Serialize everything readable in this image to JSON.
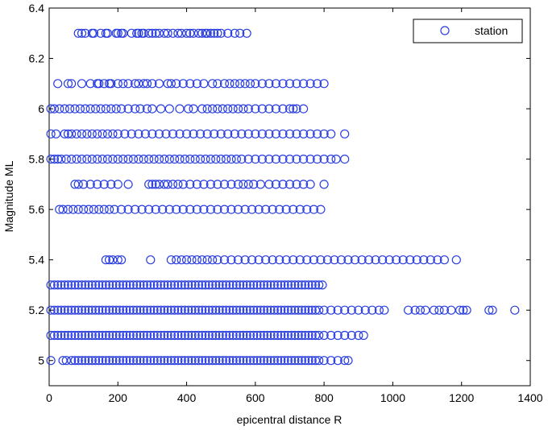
{
  "chart_data": {
    "type": "scatter",
    "title": "",
    "xlabel": "epicentral distance R",
    "ylabel": "Magnitude ML",
    "xlim": [
      0,
      1400
    ],
    "ylim": [
      4.9,
      6.4
    ],
    "xticks": [
      0,
      200,
      400,
      600,
      800,
      1000,
      1200,
      1400
    ],
    "yticks": [
      5,
      5.2,
      5.4,
      5.6,
      5.8,
      6,
      6.2,
      6.4
    ],
    "xtick_labels": [
      "0",
      "200",
      "400",
      "600",
      "800",
      "1000",
      "1200",
      "1400"
    ],
    "ytick_labels": [
      "5",
      "5.2",
      "5.4",
      "5.6",
      "5.8",
      "6",
      "6.2",
      "6.4"
    ],
    "grid": false,
    "legend_position": "top-right",
    "marker": "open-circle",
    "color": "#2b3fe0",
    "series": [
      {
        "name": "station",
        "rows": [
          {
            "y": 6.3,
            "x": [
              85,
              95,
              105,
              125,
              130,
              150,
              165,
              170,
              195,
              200,
              210,
              215,
              240,
              255,
              260,
              270,
              275,
              290,
              300,
              310,
              320,
              335,
              345,
              360,
              375,
              385,
              400,
              410,
              420,
              435,
              445,
              455,
              460,
              470,
              480,
              490,
              500,
              520,
              540,
              555,
              575
            ]
          },
          {
            "y": 6.1,
            "x": [
              25,
              55,
              65,
              95,
              120,
              140,
              145,
              160,
              175,
              180,
              200,
              215,
              230,
              250,
              260,
              275,
              285,
              300,
              320,
              345,
              355,
              370,
              390,
              410,
              430,
              450,
              475,
              490,
              510,
              525,
              540,
              555,
              570,
              585,
              600,
              620,
              640,
              660,
              680,
              700,
              720,
              740,
              760,
              780,
              800
            ]
          },
          {
            "y": 6.0,
            "x": [
              5,
              15,
              30,
              45,
              60,
              75,
              90,
              105,
              120,
              135,
              150,
              165,
              180,
              195,
              210,
              230,
              250,
              265,
              285,
              300,
              325,
              350,
              380,
              405,
              420,
              445,
              460,
              475,
              490,
              505,
              520,
              535,
              550,
              565,
              580,
              600,
              620,
              640,
              660,
              680,
              700,
              710,
              720,
              740
            ]
          },
          {
            "y": 5.9,
            "x": [
              5,
              20,
              45,
              55,
              65,
              80,
              95,
              110,
              125,
              140,
              155,
              170,
              185,
              200,
              220,
              240,
              260,
              280,
              300,
              320,
              340,
              360,
              380,
              400,
              420,
              440,
              460,
              480,
              500,
              520,
              540,
              560,
              580,
              600,
              620,
              640,
              660,
              680,
              700,
              720,
              740,
              760,
              780,
              800,
              820,
              860
            ]
          },
          {
            "y": 5.8,
            "x": [
              5,
              15,
              25,
              35,
              50,
              65,
              80,
              95,
              110,
              125,
              140,
              155,
              170,
              185,
              200,
              215,
              230,
              245,
              260,
              275,
              290,
              305,
              320,
              335,
              350,
              365,
              380,
              395,
              410,
              425,
              440,
              455,
              470,
              485,
              500,
              515,
              530,
              545,
              560,
              580,
              600,
              620,
              640,
              660,
              680,
              700,
              720,
              740,
              760,
              780,
              800,
              820,
              835,
              860
            ]
          },
          {
            "y": 5.7,
            "x": [
              75,
              85,
              100,
              120,
              140,
              160,
              180,
              200,
              230,
              290,
              300,
              310,
              320,
              335,
              345,
              360,
              375,
              390,
              410,
              430,
              450,
              470,
              490,
              510,
              530,
              550,
              565,
              580,
              595,
              615,
              640,
              660,
              680,
              700,
              720,
              740,
              760,
              800
            ]
          },
          {
            "y": 5.6,
            "x": [
              30,
              40,
              55,
              70,
              85,
              100,
              115,
              130,
              145,
              160,
              175,
              190,
              210,
              230,
              250,
              270,
              290,
              310,
              330,
              350,
              370,
              390,
              410,
              430,
              450,
              470,
              490,
              510,
              530,
              550,
              570,
              590,
              610,
              630,
              650,
              670,
              690,
              710,
              730,
              750,
              770,
              790
            ]
          },
          {
            "y": 5.4,
            "x": [
              165,
              175,
              185,
              200,
              210,
              295,
              355,
              370,
              385,
              400,
              415,
              430,
              445,
              460,
              475,
              490,
              510,
              530,
              550,
              570,
              590,
              610,
              630,
              650,
              670,
              690,
              710,
              730,
              750,
              770,
              790,
              810,
              830,
              850,
              870,
              890,
              910,
              930,
              950,
              970,
              990,
              1010,
              1030,
              1050,
              1070,
              1090,
              1110,
              1130,
              1150,
              1185
            ]
          },
          {
            "y": 5.3,
            "x": [
              5,
              15,
              25,
              35,
              45,
              55,
              65,
              75,
              85,
              95,
              105,
              115,
              125,
              135,
              145,
              155,
              165,
              175,
              185,
              195,
              205,
              215,
              225,
              235,
              245,
              255,
              265,
              275,
              285,
              295,
              305,
              315,
              325,
              335,
              345,
              355,
              365,
              375,
              385,
              395,
              405,
              415,
              425,
              435,
              445,
              455,
              465,
              475,
              485,
              495,
              505,
              515,
              525,
              535,
              545,
              555,
              565,
              575,
              585,
              595,
              605,
              615,
              625,
              635,
              645,
              655,
              665,
              675,
              685,
              695,
              705,
              715,
              725,
              735,
              745,
              755,
              765,
              775,
              785,
              795
            ]
          },
          {
            "y": 5.2,
            "x": [
              5,
              15,
              25,
              35,
              45,
              55,
              65,
              75,
              85,
              95,
              105,
              115,
              125,
              135,
              145,
              155,
              165,
              175,
              185,
              195,
              205,
              215,
              225,
              235,
              245,
              255,
              265,
              275,
              285,
              295,
              305,
              315,
              325,
              335,
              345,
              355,
              365,
              375,
              385,
              395,
              405,
              415,
              425,
              435,
              445,
              455,
              465,
              475,
              485,
              495,
              505,
              515,
              525,
              535,
              545,
              555,
              565,
              575,
              585,
              595,
              605,
              615,
              625,
              635,
              645,
              655,
              665,
              675,
              685,
              695,
              705,
              715,
              725,
              735,
              745,
              755,
              765,
              775,
              785,
              800,
              820,
              840,
              860,
              880,
              900,
              920,
              940,
              960,
              975,
              1045,
              1065,
              1080,
              1095,
              1120,
              1135,
              1150,
              1170,
              1195,
              1205,
              1215,
              1280,
              1290,
              1355
            ]
          },
          {
            "y": 5.1,
            "x": [
              5,
              15,
              25,
              35,
              45,
              55,
              65,
              75,
              85,
              95,
              105,
              115,
              125,
              135,
              145,
              155,
              165,
              175,
              185,
              195,
              205,
              215,
              225,
              235,
              245,
              255,
              265,
              275,
              285,
              295,
              305,
              315,
              325,
              335,
              345,
              355,
              365,
              375,
              385,
              395,
              405,
              415,
              425,
              435,
              445,
              455,
              465,
              475,
              485,
              495,
              505,
              515,
              525,
              535,
              545,
              555,
              565,
              575,
              585,
              595,
              605,
              615,
              625,
              635,
              645,
              655,
              665,
              675,
              685,
              695,
              705,
              715,
              725,
              735,
              745,
              755,
              765,
              775,
              785,
              800,
              820,
              840,
              860,
              880,
              900,
              915
            ]
          },
          {
            "y": 5.0,
            "x": [
              5,
              40,
              50,
              65,
              75,
              85,
              95,
              105,
              115,
              125,
              135,
              145,
              155,
              165,
              175,
              185,
              195,
              205,
              215,
              225,
              235,
              245,
              255,
              265,
              275,
              285,
              295,
              305,
              315,
              325,
              335,
              345,
              355,
              365,
              375,
              385,
              395,
              405,
              415,
              425,
              435,
              445,
              455,
              465,
              475,
              485,
              495,
              505,
              515,
              525,
              535,
              545,
              555,
              565,
              575,
              585,
              595,
              605,
              615,
              625,
              635,
              645,
              655,
              665,
              675,
              685,
              695,
              705,
              715,
              725,
              735,
              745,
              755,
              765,
              775,
              785,
              800,
              820,
              840,
              860,
              870
            ]
          }
        ]
      }
    ]
  }
}
